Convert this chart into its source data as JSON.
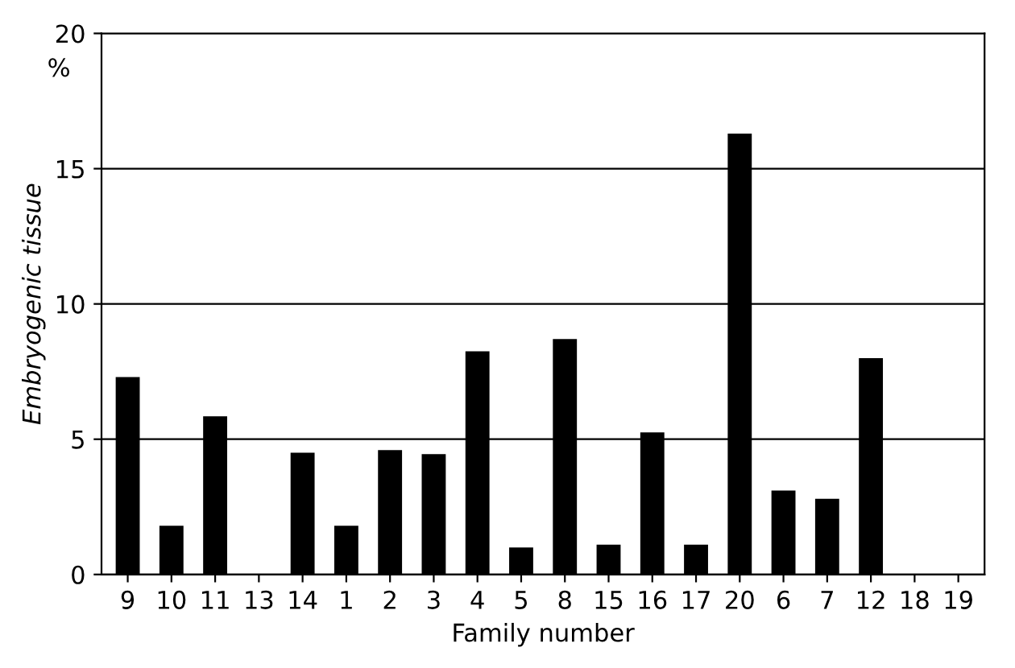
{
  "chart_data": {
    "type": "bar",
    "xlabel": "Family number",
    "ylabel": "Embryogenic tissue",
    "categories": [
      "9",
      "10",
      "11",
      "13",
      "14",
      "1",
      "2",
      "3",
      "4",
      "5",
      "8",
      "15",
      "16",
      "17",
      "20",
      "6",
      "7",
      "12",
      "18",
      "19"
    ],
    "values": [
      7.3,
      1.8,
      5.85,
      0,
      4.5,
      1.8,
      4.6,
      4.45,
      8.25,
      1.0,
      8.7,
      1.1,
      5.25,
      1.1,
      16.3,
      3.1,
      2.8,
      8.0,
      0,
      0
    ],
    "color": "#000000",
    "ylim": [
      0,
      20
    ],
    "yticks": [
      0,
      5,
      10,
      15,
      20
    ],
    "grid": "y",
    "annotations": [
      "%"
    ]
  }
}
